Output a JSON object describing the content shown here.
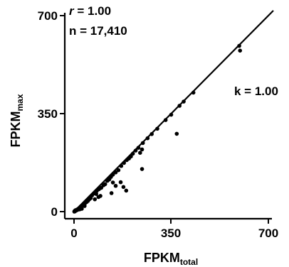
{
  "chart_data": {
    "type": "scatter",
    "xlabel": "FPKM",
    "xlabel_sub": "total",
    "ylabel": "FPKM",
    "ylabel_sub": "max",
    "xlim": [
      0,
      700
    ],
    "ylim": [
      0,
      700
    ],
    "xticks": [
      "0",
      "350",
      "700"
    ],
    "yticks": [
      "0",
      "350",
      "700"
    ],
    "annotations": {
      "r_symbol": "r",
      "r_value": " = 1.00",
      "n_label": "n = 17,410",
      "k_label": "k = 1.00"
    },
    "fit_line": {
      "slope": 1.0,
      "intercept": 0,
      "x_range": [
        0,
        700
      ]
    },
    "grid": false,
    "marker_color": "#000000",
    "points": [
      {
        "x": 595,
        "y": 592
      },
      {
        "x": 598,
        "y": 575
      },
      {
        "x": 430,
        "y": 425
      },
      {
        "x": 395,
        "y": 393
      },
      {
        "x": 380,
        "y": 378
      },
      {
        "x": 370,
        "y": 278
      },
      {
        "x": 350,
        "y": 346
      },
      {
        "x": 330,
        "y": 327
      },
      {
        "x": 300,
        "y": 296
      },
      {
        "x": 280,
        "y": 277
      },
      {
        "x": 265,
        "y": 262
      },
      {
        "x": 248,
        "y": 245
      },
      {
        "x": 245,
        "y": 222
      },
      {
        "x": 238,
        "y": 210
      },
      {
        "x": 232,
        "y": 228
      },
      {
        "x": 222,
        "y": 218
      },
      {
        "x": 212,
        "y": 207
      },
      {
        "x": 205,
        "y": 197
      },
      {
        "x": 198,
        "y": 190
      },
      {
        "x": 190,
        "y": 184
      },
      {
        "x": 180,
        "y": 174
      },
      {
        "x": 170,
        "y": 163
      },
      {
        "x": 160,
        "y": 148
      },
      {
        "x": 150,
        "y": 140
      },
      {
        "x": 140,
        "y": 132
      },
      {
        "x": 133,
        "y": 124
      },
      {
        "x": 127,
        "y": 115
      },
      {
        "x": 120,
        "y": 110
      },
      {
        "x": 112,
        "y": 98
      },
      {
        "x": 106,
        "y": 94
      },
      {
        "x": 245,
        "y": 152
      },
      {
        "x": 188,
        "y": 75
      },
      {
        "x": 178,
        "y": 88
      },
      {
        "x": 168,
        "y": 105
      },
      {
        "x": 150,
        "y": 92
      },
      {
        "x": 135,
        "y": 66
      },
      {
        "x": 140,
        "y": 104
      },
      {
        "x": 95,
        "y": 56
      },
      {
        "x": 88,
        "y": 52
      },
      {
        "x": 75,
        "y": 44
      },
      {
        "x": 80,
        "y": 63
      },
      {
        "x": 98,
        "y": 85
      },
      {
        "x": 90,
        "y": 80
      },
      {
        "x": 82,
        "y": 74
      },
      {
        "x": 72,
        "y": 65
      },
      {
        "x": 65,
        "y": 58
      },
      {
        "x": 60,
        "y": 48
      },
      {
        "x": 55,
        "y": 44
      },
      {
        "x": 50,
        "y": 38
      },
      {
        "x": 45,
        "y": 34
      },
      {
        "x": 40,
        "y": 30
      },
      {
        "x": 38,
        "y": 20
      },
      {
        "x": 35,
        "y": 26
      },
      {
        "x": 30,
        "y": 22
      },
      {
        "x": 28,
        "y": 10
      },
      {
        "x": 25,
        "y": 19
      },
      {
        "x": 22,
        "y": 15
      },
      {
        "x": 20,
        "y": 8
      },
      {
        "x": 18,
        "y": 12
      },
      {
        "x": 15,
        "y": 10
      },
      {
        "x": 12,
        "y": 6
      },
      {
        "x": 10,
        "y": 7
      },
      {
        "x": 8,
        "y": 4
      },
      {
        "x": 6,
        "y": 3
      },
      {
        "x": 5,
        "y": 5
      },
      {
        "x": 4,
        "y": 2
      },
      {
        "x": 3,
        "y": 1
      },
      {
        "x": 2,
        "y": 2
      },
      {
        "x": 1,
        "y": 0
      }
    ]
  }
}
